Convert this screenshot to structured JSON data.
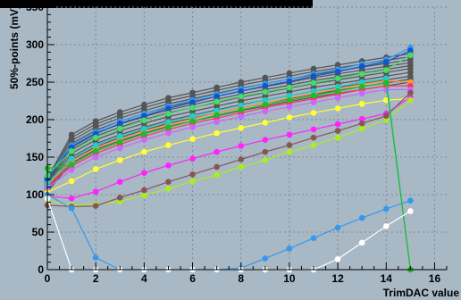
{
  "chart_data": {
    "type": "line",
    "title": "",
    "xlabel": "TrimDAC value",
    "ylabel": "50%-points (mV)",
    "xlim": [
      0,
      16.5
    ],
    "ylim": [
      0,
      350
    ],
    "x_ticks": [
      0,
      2,
      4,
      6,
      8,
      10,
      12,
      14,
      16
    ],
    "y_ticks": [
      0,
      50,
      100,
      150,
      200,
      250,
      300,
      350
    ],
    "x": [
      0,
      1,
      2,
      3,
      4,
      5,
      6,
      7,
      8,
      9,
      10,
      11,
      12,
      13,
      14,
      15
    ],
    "grid": true,
    "legend": "none",
    "series": [
      {
        "color": "#555555",
        "values": [
          112,
          160,
          178,
          190,
          200,
          209,
          216,
          223,
          230,
          236,
          242,
          248,
          253,
          258,
          263,
          268
        ]
      },
      {
        "color": "#555555",
        "values": [
          108,
          150,
          168,
          180,
          190,
          199,
          206,
          213,
          220,
          226,
          232,
          238,
          243,
          248,
          253,
          258
        ]
      },
      {
        "color": "#555555",
        "values": [
          110,
          155,
          173,
          185,
          195,
          204,
          211,
          218,
          225,
          231,
          237,
          243,
          248,
          253,
          258,
          263
        ]
      },
      {
        "color": "#555555",
        "values": [
          114,
          164,
          182,
          194,
          204,
          213,
          220,
          227,
          234,
          240,
          246,
          252,
          257,
          262,
          267,
          272
        ]
      },
      {
        "color": "#555555",
        "values": [
          116,
          168,
          186,
          198,
          208,
          217,
          224,
          231,
          238,
          244,
          250,
          256,
          261,
          266,
          271,
          276
        ]
      },
      {
        "color": "#555555",
        "values": [
          118,
          172,
          190,
          202,
          212,
          221,
          228,
          235,
          242,
          248,
          254,
          260,
          265,
          270,
          275,
          280
        ]
      },
      {
        "color": "#555555",
        "values": [
          120,
          176,
          194,
          206,
          216,
          225,
          232,
          239,
          246,
          252,
          258,
          264,
          269,
          274,
          279,
          284
        ]
      },
      {
        "color": "#555555",
        "values": [
          106,
          146,
          164,
          176,
          186,
          195,
          202,
          209,
          216,
          222,
          228,
          234,
          239,
          244,
          249,
          254
        ]
      },
      {
        "color": "#555555",
        "values": [
          104,
          142,
          160,
          172,
          182,
          191,
          198,
          205,
          212,
          218,
          224,
          230,
          235,
          240,
          245,
          250
        ]
      },
      {
        "color": "#555555",
        "values": [
          122,
          180,
          198,
          210,
          220,
          229,
          236,
          243,
          250,
          256,
          262,
          268,
          273,
          278,
          283,
          288
        ]
      },
      {
        "color": "#3399ee",
        "values": [
          124,
          166,
          184,
          198,
          208,
          218,
          226,
          234,
          241,
          248,
          254,
          261,
          267,
          274,
          280,
          296
        ]
      },
      {
        "color": "#1155cc",
        "values": [
          121,
          163,
          181,
          195,
          205,
          215,
          223,
          231,
          238,
          245,
          251,
          258,
          264,
          271,
          277,
          292
        ]
      },
      {
        "color": "#44dd66",
        "values": [
          126,
          158,
          176,
          188,
          199,
          208,
          216,
          224,
          231,
          237,
          243,
          249,
          255,
          261,
          266,
          286
        ]
      },
      {
        "color": "#ff9933",
        "values": [
          113,
          145,
          162,
          174,
          185,
          193,
          201,
          209,
          216,
          222,
          229,
          235,
          241,
          247,
          252,
          250
        ]
      },
      {
        "color": "#ff3366",
        "values": [
          111,
          138,
          155,
          167,
          178,
          187,
          195,
          202,
          209,
          216,
          222,
          228,
          234,
          240,
          245,
          245
        ]
      },
      {
        "color": "#cc66ff",
        "values": [
          109,
          133,
          150,
          162,
          173,
          182,
          190,
          197,
          204,
          211,
          217,
          223,
          229,
          235,
          240,
          240
        ]
      },
      {
        "color": "#ffff33",
        "values": [
          103,
          118,
          134,
          146,
          157,
          166,
          174,
          182,
          189,
          196,
          203,
          209,
          215,
          221,
          226,
          228
        ]
      },
      {
        "color": "#ff22ff",
        "values": [
          98,
          95,
          104,
          117,
          129,
          139,
          148,
          157,
          165,
          173,
          180,
          187,
          194,
          201,
          208,
          230
        ]
      },
      {
        "color": "#aaee22",
        "values": [
          92,
          86,
          87,
          91,
          99,
          108,
          118,
          126,
          137,
          146,
          157,
          166,
          176,
          188,
          200,
          226
        ]
      },
      {
        "color": "#885555",
        "values": [
          86,
          84,
          85,
          96,
          106,
          117,
          127,
          137,
          147,
          157,
          166,
          176,
          185,
          195,
          205,
          236
        ]
      },
      {
        "color": "#22cccc",
        "values": [
          115,
          148,
          166,
          178,
          188,
          197,
          205,
          212,
          219,
          226,
          232,
          238,
          244,
          250,
          255,
          0
        ]
      },
      {
        "color": "#22bb22",
        "values": [
          135,
          140,
          158,
          170,
          181,
          190,
          198,
          206,
          213,
          220,
          226,
          232,
          238,
          244,
          249,
          0
        ]
      },
      {
        "color": "#3399ee",
        "values": [
          100,
          82,
          16,
          0,
          0,
          0,
          0,
          0,
          2,
          15,
          28,
          42,
          56,
          69,
          81,
          92
        ]
      },
      {
        "color": "#ffffff",
        "values": [
          95,
          0,
          0,
          0,
          0,
          0,
          0,
          0,
          0,
          0,
          0,
          0,
          14,
          36,
          58,
          78
        ]
      }
    ]
  }
}
